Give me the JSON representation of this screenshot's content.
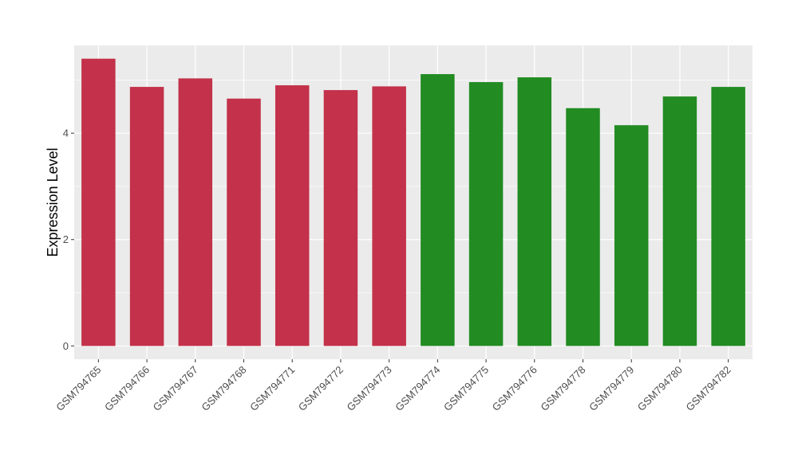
{
  "chart_data": {
    "type": "bar",
    "ylabel": "Expression Level",
    "xlabel": "",
    "ylim": [
      -0.25,
      5.65
    ],
    "yticks": [
      0,
      2,
      4
    ],
    "grid": true,
    "categories": [
      "GSM794765",
      "GSM794766",
      "GSM794767",
      "GSM794768",
      "GSM794771",
      "GSM794772",
      "GSM794773",
      "GSM794774",
      "GSM794775",
      "GSM794776",
      "GSM794778",
      "GSM794779",
      "GSM794780",
      "GSM794782"
    ],
    "values": [
      5.4,
      4.87,
      5.03,
      4.65,
      4.9,
      4.81,
      4.88,
      5.11,
      4.96,
      5.05,
      4.47,
      4.15,
      4.69,
      4.87
    ],
    "colors": [
      "#c3314a",
      "#c3314a",
      "#c3314a",
      "#c3314a",
      "#c3314a",
      "#c3314a",
      "#c3314a",
      "#228b22",
      "#228b22",
      "#228b22",
      "#228b22",
      "#228b22",
      "#228b22",
      "#228b22"
    ],
    "panel_background": "#ebebeb",
    "grid_color": "#ffffff"
  }
}
